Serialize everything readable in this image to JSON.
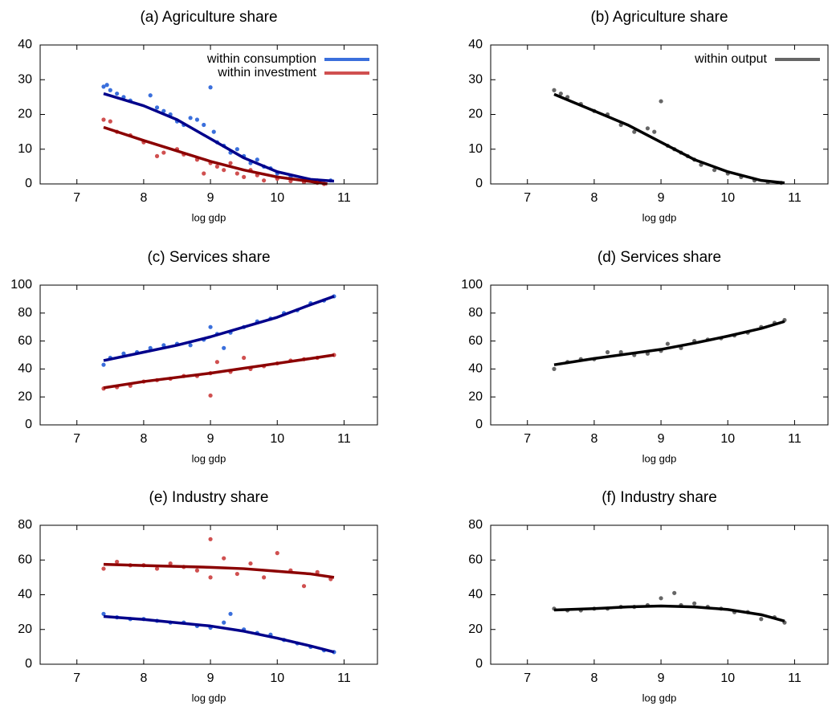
{
  "chart_data": [
    {
      "type": "scatter",
      "title": "(a) Agriculture share",
      "x_label": "log gdp",
      "xlim": [
        6.45,
        11.5
      ],
      "xticks": [
        7,
        8,
        9,
        10,
        11
      ],
      "ylim": [
        0,
        40
      ],
      "yticks": [
        0,
        10,
        20,
        30,
        40
      ],
      "legend": "upper right",
      "series": [
        {
          "name": "within consumption",
          "color": "#3a6fdc",
          "line_color": "#00008b",
          "x": [
            7.4,
            7.45,
            7.5,
            7.6,
            7.7,
            7.8,
            8.1,
            8.2,
            8.3,
            8.4,
            8.5,
            8.6,
            8.7,
            8.8,
            8.9,
            9.0,
            9.05,
            9.1,
            9.2,
            9.3,
            9.4,
            9.5,
            9.6,
            9.7,
            9.8,
            9.9,
            10.0,
            10.2,
            10.4,
            10.6,
            10.8
          ],
          "values": [
            28,
            28.5,
            27,
            26,
            25,
            24,
            25.5,
            22,
            21,
            20,
            18,
            17,
            19,
            18.5,
            17,
            27.8,
            15,
            12,
            11,
            9,
            10,
            8,
            6,
            7,
            5,
            4.5,
            3,
            2,
            1.5,
            1,
            1
          ],
          "fit_x": [
            7.4,
            8,
            8.5,
            9,
            9.5,
            10,
            10.5,
            10.85
          ],
          "fit_values": [
            26,
            22.5,
            18.5,
            13,
            7.5,
            3.5,
            1.3,
            0.8
          ]
        },
        {
          "name": "within investment",
          "color": "#d05050",
          "line_color": "#8b0000",
          "x": [
            7.4,
            7.5,
            7.6,
            7.8,
            8.0,
            8.2,
            8.3,
            8.5,
            8.6,
            8.8,
            8.9,
            9.0,
            9.1,
            9.2,
            9.3,
            9.4,
            9.5,
            9.6,
            9.7,
            9.8,
            10.0,
            10.2,
            10.4,
            10.6,
            10.7
          ],
          "values": [
            18.5,
            18,
            15,
            14,
            12,
            8,
            9,
            10,
            8.5,
            7,
            3,
            6,
            5,
            4,
            6,
            3,
            2,
            4,
            2.5,
            1,
            1.5,
            0.8,
            0.5,
            0.3,
            0
          ],
          "fit_x": [
            7.4,
            8,
            8.5,
            9,
            9.5,
            10,
            10.5,
            10.75
          ],
          "fit_values": [
            16.3,
            12.5,
            9.5,
            6.5,
            4,
            2,
            0.7,
            0
          ]
        }
      ]
    },
    {
      "type": "scatter",
      "title": "(b) Agriculture share",
      "x_label": "log gdp",
      "xlim": [
        6.45,
        11.5
      ],
      "xticks": [
        7,
        8,
        9,
        10,
        11
      ],
      "ylim": [
        0,
        40
      ],
      "yticks": [
        0,
        10,
        20,
        30,
        40
      ],
      "legend": "upper right",
      "series": [
        {
          "name": "within output",
          "color": "#666666",
          "line_color": "#000000",
          "x": [
            7.4,
            7.5,
            7.6,
            7.8,
            8.0,
            8.2,
            8.4,
            8.6,
            8.8,
            8.9,
            9.0,
            9.1,
            9.2,
            9.3,
            9.4,
            9.5,
            9.6,
            9.8,
            10.0,
            10.2,
            10.4,
            10.6,
            10.8
          ],
          "values": [
            27,
            26,
            25,
            23,
            21,
            20,
            17,
            15,
            16,
            15,
            23.8,
            11,
            10,
            9,
            8,
            7,
            5.5,
            4,
            3,
            2,
            1,
            0.5,
            0.3
          ],
          "fit_x": [
            7.4,
            8,
            8.5,
            9,
            9.5,
            10,
            10.5,
            10.85
          ],
          "fit_values": [
            25.8,
            21,
            17,
            12,
            7,
            3.5,
            1,
            0.3
          ]
        }
      ]
    },
    {
      "type": "scatter",
      "title": "(c) Services share",
      "x_label": "log gdp",
      "xlim": [
        6.45,
        11.5
      ],
      "xticks": [
        7,
        8,
        9,
        10,
        11
      ],
      "ylim": [
        0,
        100
      ],
      "yticks": [
        0,
        20,
        40,
        60,
        80,
        100
      ],
      "series": [
        {
          "color": "#3a6fdc",
          "line_color": "#00008b",
          "x": [
            7.4,
            7.5,
            7.7,
            7.9,
            8.1,
            8.3,
            8.5,
            8.7,
            8.9,
            9.0,
            9.1,
            9.2,
            9.3,
            9.5,
            9.7,
            9.9,
            10.1,
            10.3,
            10.5,
            10.7,
            10.85
          ],
          "values": [
            43,
            48,
            51,
            52,
            55,
            57,
            58,
            57,
            61,
            70,
            65,
            55,
            66,
            70,
            74,
            76,
            80,
            82,
            87,
            89,
            92
          ],
          "fit_x": [
            7.4,
            8,
            8.5,
            9,
            9.5,
            10,
            10.5,
            10.85
          ],
          "fit_values": [
            46,
            52,
            57,
            63,
            70,
            77,
            86,
            92
          ]
        },
        {
          "color": "#d05050",
          "line_color": "#8b0000",
          "x": [
            7.4,
            7.6,
            7.8,
            8.0,
            8.2,
            8.4,
            8.6,
            8.8,
            9.0,
            9.0,
            9.1,
            9.3,
            9.5,
            9.6,
            9.8,
            10.0,
            10.2,
            10.4,
            10.6,
            10.85
          ],
          "values": [
            26,
            27,
            28,
            31,
            32,
            33,
            35,
            35,
            21,
            37,
            45,
            38,
            48,
            40,
            42,
            44,
            46,
            47,
            48,
            50
          ],
          "fit_x": [
            7.4,
            8,
            9,
            9.5,
            10,
            10.5,
            10.85
          ],
          "fit_values": [
            26.5,
            31,
            37,
            40.5,
            44,
            47.5,
            50
          ]
        }
      ]
    },
    {
      "type": "scatter",
      "title": "(d) Services share",
      "x_label": "log gdp",
      "xlim": [
        6.45,
        11.5
      ],
      "xticks": [
        7,
        8,
        9,
        10,
        11
      ],
      "ylim": [
        0,
        100
      ],
      "yticks": [
        0,
        20,
        40,
        60,
        80,
        100
      ],
      "series": [
        {
          "color": "#666666",
          "line_color": "#000000",
          "x": [
            7.4,
            7.6,
            7.8,
            8.0,
            8.2,
            8.4,
            8.6,
            8.8,
            9.0,
            9.1,
            9.3,
            9.5,
            9.7,
            9.9,
            10.1,
            10.3,
            10.5,
            10.7,
            10.85
          ],
          "values": [
            40,
            45,
            47,
            47,
            52,
            52,
            50,
            51,
            53,
            58,
            55,
            60,
            61,
            62,
            64,
            66,
            70,
            73,
            75
          ],
          "fit_x": [
            7.4,
            8,
            9,
            9.5,
            10,
            10.5,
            10.85
          ],
          "fit_values": [
            43,
            47.5,
            54,
            58.5,
            63.5,
            69,
            74
          ]
        }
      ]
    },
    {
      "type": "scatter",
      "title": "(e) Industry share",
      "x_label": "log gdp",
      "xlim": [
        6.45,
        11.5
      ],
      "xticks": [
        7,
        8,
        9,
        10,
        11
      ],
      "ylim": [
        0,
        80
      ],
      "yticks": [
        0,
        20,
        40,
        60,
        80
      ],
      "series": [
        {
          "color": "#3a6fdc",
          "line_color": "#00008b",
          "x": [
            7.4,
            7.6,
            7.8,
            8.0,
            8.2,
            8.4,
            8.6,
            8.8,
            9.0,
            9.2,
            9.3,
            9.5,
            9.7,
            9.9,
            10.1,
            10.3,
            10.5,
            10.7,
            10.85
          ],
          "values": [
            29,
            27,
            26,
            26,
            25,
            24,
            24,
            22,
            21,
            24,
            29,
            20,
            18,
            17,
            14,
            12,
            10,
            8,
            7
          ],
          "fit_x": [
            7.4,
            8,
            9,
            9.5,
            10,
            10.5,
            10.85
          ],
          "fit_values": [
            27.5,
            25.8,
            22,
            19,
            15,
            10.5,
            7
          ]
        },
        {
          "color": "#d05050",
          "line_color": "#8b0000",
          "x": [
            7.4,
            7.6,
            7.8,
            8.0,
            8.2,
            8.4,
            8.6,
            8.8,
            9.0,
            9.0,
            9.2,
            9.4,
            9.6,
            9.8,
            10.0,
            10.2,
            10.4,
            10.6,
            10.8
          ],
          "values": [
            55,
            59,
            57,
            57,
            55,
            58,
            56,
            54,
            72,
            50,
            61,
            52,
            58,
            50,
            64,
            54,
            45,
            53,
            49
          ],
          "fit_x": [
            7.4,
            8,
            9,
            9.5,
            10,
            10.5,
            10.85
          ],
          "fit_values": [
            57.5,
            56.8,
            55.8,
            55,
            53.5,
            52,
            50
          ]
        }
      ]
    },
    {
      "type": "scatter",
      "title": "(f) Industry share",
      "x_label": "log gdp",
      "xlim": [
        6.45,
        11.5
      ],
      "xticks": [
        7,
        8,
        9,
        10,
        11
      ],
      "ylim": [
        0,
        80
      ],
      "yticks": [
        0,
        20,
        40,
        60,
        80
      ],
      "series": [
        {
          "color": "#666666",
          "line_color": "#000000",
          "x": [
            7.4,
            7.6,
            7.8,
            8.0,
            8.2,
            8.4,
            8.6,
            8.8,
            9.0,
            9.2,
            9.3,
            9.5,
            9.7,
            9.9,
            10.1,
            10.3,
            10.5,
            10.7,
            10.85
          ],
          "values": [
            32,
            31,
            31,
            32,
            32,
            33,
            33,
            34,
            38,
            41,
            34,
            35,
            33,
            32,
            30,
            30,
            26,
            27,
            24
          ],
          "fit_x": [
            7.4,
            8,
            8.5,
            9,
            9.5,
            10,
            10.5,
            10.85
          ],
          "fit_values": [
            31.2,
            32,
            33,
            33.5,
            33,
            31.5,
            28.5,
            24.8
          ]
        }
      ]
    }
  ]
}
